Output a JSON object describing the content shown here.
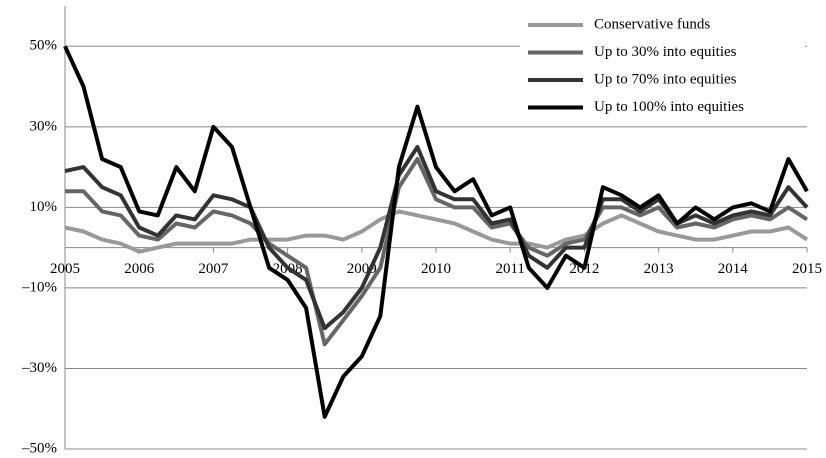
{
  "chart_data": {
    "type": "line",
    "x": [
      2005,
      2005.25,
      2005.5,
      2005.75,
      2006,
      2006.25,
      2006.5,
      2006.75,
      2007,
      2007.25,
      2007.5,
      2007.75,
      2008,
      2008.25,
      2008.5,
      2008.75,
      2009,
      2009.25,
      2009.5,
      2009.75,
      2010,
      2010.25,
      2010.5,
      2010.75,
      2011,
      2011.25,
      2011.5,
      2011.75,
      2012,
      2012.25,
      2012.5,
      2012.75,
      2013,
      2013.25,
      2013.5,
      2013.75,
      2014,
      2014.25,
      2014.5,
      2014.75,
      2015
    ],
    "series": [
      {
        "name": "Conservative funds",
        "color": "#999999",
        "values": [
          5,
          4,
          2,
          1,
          -1,
          0,
          1,
          1,
          1,
          1,
          2,
          2,
          2,
          3,
          3,
          2,
          4,
          7,
          9,
          8,
          7,
          6,
          4,
          2,
          1,
          1,
          0,
          2,
          3,
          6,
          8,
          6,
          4,
          3,
          2,
          2,
          3,
          4,
          4,
          5,
          2
        ]
      },
      {
        "name": "Up to 30% into equities",
        "color": "#666666",
        "values": [
          14,
          14,
          9,
          8,
          3,
          2,
          6,
          5,
          9,
          8,
          6,
          1,
          -2,
          -5,
          -24,
          -18,
          -12,
          -5,
          15,
          22,
          12,
          10,
          10,
          5,
          6,
          0,
          -2,
          1,
          2,
          10,
          10,
          8,
          10,
          5,
          6,
          5,
          7,
          8,
          7,
          10,
          7
        ]
      },
      {
        "name": "Up to 70% into equities",
        "color": "#333333",
        "values": [
          19,
          20,
          15,
          13,
          5,
          3,
          8,
          7,
          13,
          12,
          10,
          0,
          -5,
          -8,
          -20,
          -16,
          -10,
          0,
          18,
          25,
          14,
          12,
          12,
          6,
          7,
          -2,
          -5,
          0,
          0,
          12,
          12,
          9,
          12,
          6,
          8,
          6,
          8,
          9,
          8,
          15,
          10
        ]
      },
      {
        "name": "Up to 100% into equities",
        "color": "#000000",
        "values": [
          50,
          40,
          22,
          20,
          9,
          8,
          20,
          14,
          30,
          25,
          10,
          -5,
          -8,
          -15,
          -42,
          -32,
          -27,
          -17,
          20,
          35,
          20,
          14,
          17,
          8,
          10,
          -5,
          -10,
          -2,
          -5,
          15,
          13,
          10,
          13,
          6,
          10,
          7,
          10,
          11,
          9,
          22,
          14
        ]
      }
    ],
    "xlim": [
      2005,
      2015
    ],
    "xticks": [
      2005,
      2006,
      2007,
      2008,
      2009,
      2010,
      2011,
      2012,
      2013,
      2014,
      2015
    ],
    "ylim": [
      -50,
      60
    ],
    "yticks": [
      {
        "value": -50,
        "label": "–50%"
      },
      {
        "value": -30,
        "label": "–30%"
      },
      {
        "value": -10,
        "label": "–10%"
      },
      {
        "value": 10,
        "label": "10%"
      },
      {
        "value": 30,
        "label": "30%"
      },
      {
        "value": 50,
        "label": "50%"
      }
    ],
    "grid": true,
    "legend": "upper right"
  }
}
